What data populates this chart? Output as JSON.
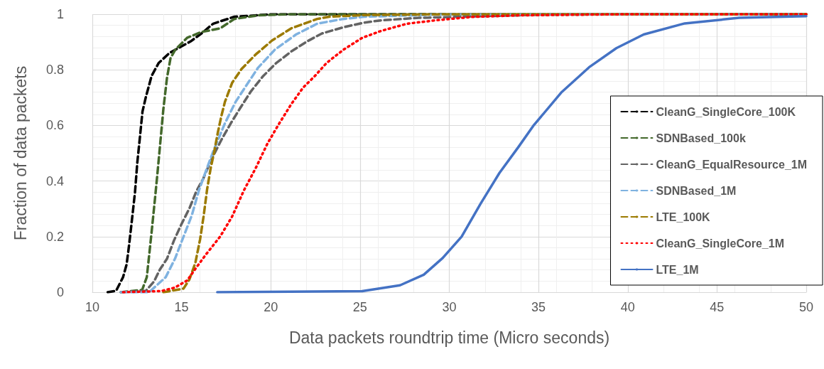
{
  "chart_data": {
    "type": "line",
    "xlabel": "Data packets roundtrip time (Micro seconds)",
    "ylabel": "Fraction of data packets",
    "xlim": [
      10,
      50
    ],
    "xticks": [
      10,
      15,
      20,
      25,
      30,
      35,
      40,
      45,
      50
    ],
    "ylim": [
      0,
      1
    ],
    "yticks": [
      0,
      0.2,
      0.4,
      0.6,
      0.8,
      1
    ],
    "grid": true,
    "legend": "right",
    "marker": "none",
    "series": [
      {
        "name": "CleanG_SingleCore_100K",
        "color": "#000000",
        "line_style": "dashed",
        "x": [
          10.86,
          11.33,
          11.72,
          11.92,
          12.06,
          12.26,
          12.39,
          12.52,
          12.65,
          12.81,
          12.99,
          13.32,
          13.71,
          14.31,
          15.5,
          16.1,
          16.77,
          17.96,
          18.76,
          20,
          30,
          40,
          50
        ],
        "values": [
          0,
          0.005,
          0.054,
          0.1,
          0.17,
          0.284,
          0.36,
          0.467,
          0.548,
          0.65,
          0.7,
          0.778,
          0.824,
          0.86,
          0.902,
          0.93,
          0.966,
          0.991,
          0.994,
          1,
          1,
          1,
          1
        ]
      },
      {
        "name": "SDNBased_100k",
        "color": "#43682b",
        "line_style": "dashed",
        "x": [
          11.6,
          12.79,
          13.05,
          13.18,
          13.32,
          13.52,
          13.65,
          13.81,
          13.98,
          14.18,
          14.38,
          14.64,
          15.31,
          16.1,
          17.16,
          17.96,
          19.29,
          21,
          30,
          40,
          50
        ],
        "values": [
          0,
          0.008,
          0.054,
          0.131,
          0.216,
          0.343,
          0.429,
          0.54,
          0.659,
          0.77,
          0.842,
          0.872,
          0.915,
          0.936,
          0.949,
          0.983,
          0.996,
          1,
          1,
          1,
          1
        ]
      },
      {
        "name": "CleanG_EqualResource_1M",
        "color": "#636363",
        "line_style": "dashed",
        "x": [
          11.6,
          13,
          13.45,
          13.78,
          14.18,
          14.58,
          14.98,
          15.44,
          15.84,
          16.21,
          16.63,
          17.23,
          17.76,
          18.29,
          18.89,
          19.55,
          20.28,
          21.14,
          22.0,
          22.87,
          24.06,
          25.25,
          26.18,
          28.3,
          35,
          40,
          50
        ],
        "values": [
          0,
          0.005,
          0.038,
          0.081,
          0.12,
          0.187,
          0.243,
          0.302,
          0.365,
          0.408,
          0.472,
          0.548,
          0.608,
          0.663,
          0.723,
          0.776,
          0.823,
          0.866,
          0.901,
          0.931,
          0.953,
          0.97,
          0.978,
          0.987,
          0.998,
          1,
          1
        ]
      },
      {
        "name": "SDNBased_1M",
        "color": "#7fb2e0",
        "line_style": "dashed",
        "x": [
          11.6,
          13.18,
          14.11,
          14.64,
          15.11,
          15.57,
          15.97,
          16.37,
          16.77,
          17.43,
          18.03,
          18.62,
          19.29,
          20.22,
          21.41,
          22.6,
          24.06,
          25.25,
          30,
          40,
          50
        ],
        "values": [
          0,
          0,
          0.054,
          0.122,
          0.2,
          0.276,
          0.366,
          0.437,
          0.506,
          0.608,
          0.685,
          0.743,
          0.808,
          0.872,
          0.927,
          0.966,
          0.983,
          0.991,
          1,
          1,
          1
        ]
      },
      {
        "name": "LTE_100K",
        "color": "#9c7a00",
        "line_style": "dashed",
        "x": [
          13.98,
          15.11,
          15.44,
          15.77,
          16.04,
          16.24,
          16.43,
          16.63,
          16.83,
          17.03,
          17.23,
          17.43,
          17.83,
          18.36,
          19.15,
          20.08,
          21.14,
          22.6,
          23.27,
          25.25,
          30,
          40,
          50
        ],
        "values": [
          0,
          0.013,
          0.046,
          0.105,
          0.191,
          0.276,
          0.37,
          0.446,
          0.506,
          0.574,
          0.634,
          0.685,
          0.753,
          0.803,
          0.855,
          0.906,
          0.949,
          0.983,
          0.991,
          0.997,
          1,
          1,
          1
        ]
      },
      {
        "name": "CleanG_SingleCore_1M",
        "color": "#ff0000",
        "line_style": "dotted",
        "x": [
          11.72,
          13.85,
          14.64,
          15.31,
          15.84,
          16.37,
          17.16,
          17.83,
          18.49,
          19.15,
          19.82,
          20.48,
          21.14,
          21.81,
          22.47,
          23.13,
          24.06,
          25.12,
          26.18,
          27.64,
          29.37,
          31.23,
          33.9,
          40,
          50
        ],
        "values": [
          0,
          0.004,
          0.017,
          0.042,
          0.09,
          0.136,
          0.2,
          0.272,
          0.366,
          0.446,
          0.536,
          0.608,
          0.676,
          0.736,
          0.778,
          0.825,
          0.872,
          0.915,
          0.94,
          0.966,
          0.979,
          0.99,
          0.996,
          1,
          1
        ]
      },
      {
        "name": "LTE_1M",
        "color": "#4472c4",
        "line_style": "solid",
        "x": [
          17,
          25.12,
          27.24,
          28.57,
          29.63,
          30.69,
          31.75,
          32.81,
          33.87,
          34.7,
          36.3,
          37.83,
          39.36,
          40.89,
          43.19,
          46.25,
          50
        ],
        "values": [
          0,
          0.004,
          0.025,
          0.063,
          0.123,
          0.2,
          0.318,
          0.429,
          0.522,
          0.598,
          0.72,
          0.809,
          0.878,
          0.927,
          0.967,
          0.987,
          0.993
        ]
      }
    ]
  }
}
